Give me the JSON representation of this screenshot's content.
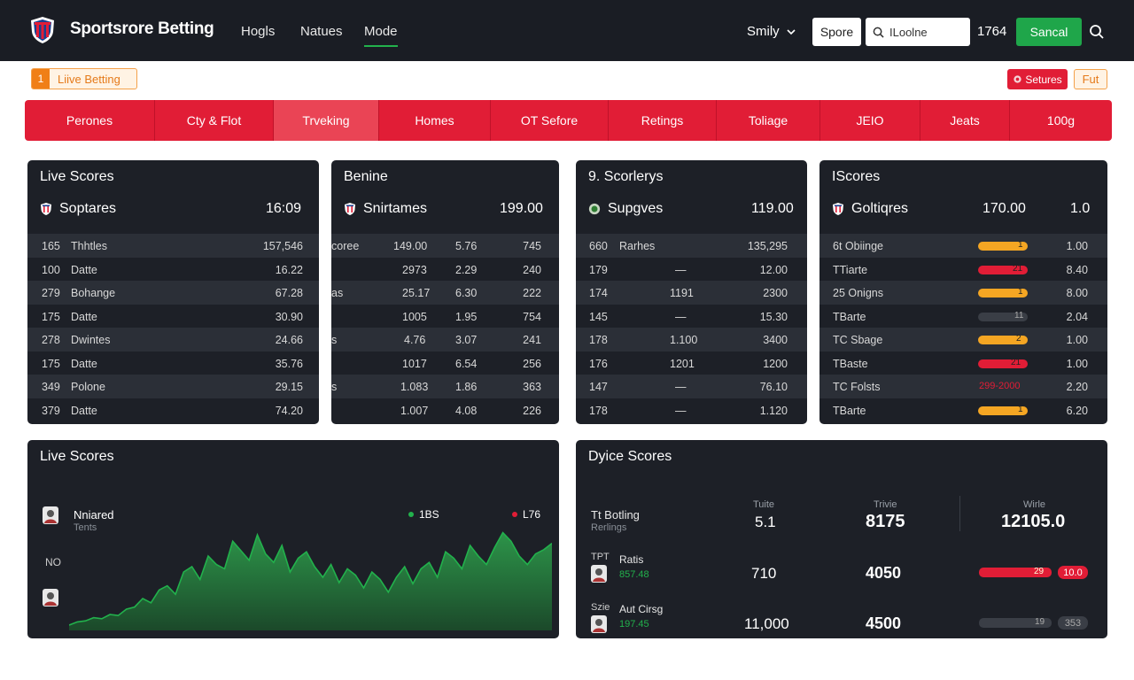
{
  "header": {
    "brand": "Sportsrore Betting",
    "nav": [
      "Hogls",
      "Natues",
      "Mode"
    ],
    "user": "Smily",
    "btn_white": "Spore",
    "search_value": "ILoolne",
    "balance": "1764",
    "btn_green": "Sancal",
    "colors": {
      "bg": "#1a1d24",
      "green": "#1fa64a"
    }
  },
  "subbar": {
    "live_num": "1",
    "live_label": "Liive Betting",
    "settings_label": "Setures",
    "fut_label": "Fut"
  },
  "categories": [
    "Perones",
    "Cty & Flot",
    "Trveking",
    "Homes",
    "OT Sefore",
    "Retings",
    "Toliage",
    "JEIO",
    "Jeats",
    "100g"
  ],
  "panel1": {
    "title": "Live Scores",
    "sub_label": "Soptares",
    "sub_value": "16:09",
    "rows": [
      {
        "a": "165",
        "b": "Thhtles",
        "c": "157,546"
      },
      {
        "a": "100",
        "b": "Datte",
        "c": "16.22"
      },
      {
        "a": "279",
        "b": "Bohange",
        "c": "67.28"
      },
      {
        "a": "175",
        "b": "Datte",
        "c": "30.90"
      },
      {
        "a": "278",
        "b": "Dwintes",
        "c": "24.66"
      },
      {
        "a": "175",
        "b": "Datte",
        "c": "35.76"
      },
      {
        "a": "349",
        "b": "Polone",
        "c": "29.15"
      },
      {
        "a": "379",
        "b": "Datte",
        "c": "74.20"
      }
    ]
  },
  "panel2": {
    "title": "Benine",
    "sub_label": "Snirtames",
    "sub_value": "199.00",
    "rows": [
      {
        "a": "coree",
        "b": "149.00",
        "c": "5.76",
        "d": "745"
      },
      {
        "a": "",
        "b": "2973",
        "c": "2.29",
        "d": "240"
      },
      {
        "a": "as",
        "b": "25.17",
        "c": "6.30",
        "d": "222"
      },
      {
        "a": "",
        "b": "1005",
        "c": "1.95",
        "d": "754"
      },
      {
        "a": "s",
        "b": "4.76",
        "c": "3.07",
        "d": "241"
      },
      {
        "a": "",
        "b": "1017",
        "c": "6.54",
        "d": "256"
      },
      {
        "a": "s",
        "b": "1.083",
        "c": "1.86",
        "d": "363"
      },
      {
        "a": "",
        "b": "1.007",
        "c": "4.08",
        "d": "226"
      }
    ]
  },
  "panel3": {
    "title": "9. Scorlerys",
    "sub_label": "Supgves",
    "sub_value": "119.00",
    "rows": [
      {
        "a": "660",
        "b": "Rarhes",
        "c": "",
        "d": "135,295"
      },
      {
        "a": "179",
        "b": "",
        "c": "—",
        "d": "12.00"
      },
      {
        "a": "174",
        "b": "",
        "c": "1191",
        "d": "2300"
      },
      {
        "a": "145",
        "b": "",
        "c": "—",
        "d": "15.30"
      },
      {
        "a": "178",
        "b": "",
        "c": "1.100",
        "d": "3400"
      },
      {
        "a": "176",
        "b": "",
        "c": "1201",
        "d": "1200"
      },
      {
        "a": "147",
        "b": "",
        "c": "—",
        "d": "76.10"
      },
      {
        "a": "178",
        "b": "",
        "c": "—",
        "d": "1.120"
      }
    ]
  },
  "panel4": {
    "title": "IScores",
    "sub_label": "Goltiqres",
    "sub_value": "170.00",
    "sub_value2": "1.0",
    "rows": [
      {
        "label": "6t Obiinge",
        "bar": "orange",
        "bar_text": "1",
        "value": "1.00"
      },
      {
        "label": "TTiarte",
        "bar": "red",
        "bar_text": "21",
        "value": "8.40"
      },
      {
        "label": "25 Onigns",
        "bar": "orange",
        "bar_text": "1",
        "value": "8.00"
      },
      {
        "label": "TBarte",
        "bar": "dark",
        "bar_text": "11",
        "value": "2.04"
      },
      {
        "label": "TC Sbage",
        "bar": "orange",
        "bar_text": "2",
        "value": "1.00"
      },
      {
        "label": "TBaste",
        "bar": "red",
        "bar_text": "21",
        "value": "1.00"
      },
      {
        "label": "TC Folsts",
        "bar": "text",
        "bar_text": "299-2000",
        "value": "2.20"
      },
      {
        "label": "TBarte",
        "bar": "orange",
        "bar_text": "1",
        "value": "6.20"
      }
    ],
    "colors": {
      "orange": "#f5a623",
      "red": "#e11d36",
      "dark": "#3a3e46"
    }
  },
  "live_chart": {
    "title": "Live Scores",
    "player_name": "Nniared",
    "player_sub": "Tents",
    "y_label": "NO",
    "legend": [
      {
        "label": "1BS",
        "color": "#22b14c"
      },
      {
        "label": "L76",
        "color": "#e11d36"
      }
    ]
  },
  "chart_data": {
    "type": "area",
    "title": "Live Scores",
    "x": [
      0,
      1,
      2,
      3,
      4,
      5,
      6,
      7,
      8,
      9,
      10,
      11,
      12,
      13,
      14,
      15,
      16,
      17,
      18,
      19,
      20,
      21,
      22,
      23,
      24,
      25,
      26,
      27,
      28,
      29,
      30,
      31,
      32,
      33,
      34,
      35,
      36,
      37,
      38,
      39,
      40,
      41,
      42,
      43,
      44,
      45,
      46,
      47,
      48,
      49,
      50,
      51,
      52,
      53,
      54,
      55,
      56,
      57,
      58,
      59
    ],
    "series": [
      {
        "values": [
          5,
          8,
          9,
          12,
          11,
          15,
          14,
          20,
          22,
          30,
          26,
          38,
          42,
          34,
          55,
          60,
          48,
          70,
          62,
          58,
          84,
          75,
          66,
          90,
          72,
          64,
          80,
          55,
          68,
          74,
          60,
          50,
          62,
          45,
          58,
          52,
          40,
          55,
          48,
          36,
          50,
          60,
          44,
          58,
          64,
          50,
          74,
          68,
          58,
          80,
          70,
          62,
          78,
          92,
          84,
          70,
          62,
          72,
          76,
          82
        ],
        "color": "#22b14c"
      }
    ],
    "ylim": [
      0,
      100
    ],
    "grid": false
  },
  "dyice": {
    "title": "Dyice Scores",
    "col_heads": [
      "Tuite",
      "Trivie",
      "Wirle"
    ],
    "rows": [
      {
        "label": "Tt Botling",
        "sub": "Rerlings",
        "v1": "5.1",
        "v2": "8175",
        "v3": "12105.0"
      },
      {
        "label": "Ratis",
        "sub": "857.48",
        "prefix": "TPT",
        "v1": "710",
        "v2": "4050",
        "bar": "red",
        "bar_text": "29",
        "tag": "10.0"
      },
      {
        "label": "Aut Cirsg",
        "sub": "197.45",
        "prefix": "Szie",
        "v1": "11,000",
        "v2": "4500",
        "bar": "dark",
        "bar_text": "19",
        "tag": "353"
      }
    ]
  }
}
